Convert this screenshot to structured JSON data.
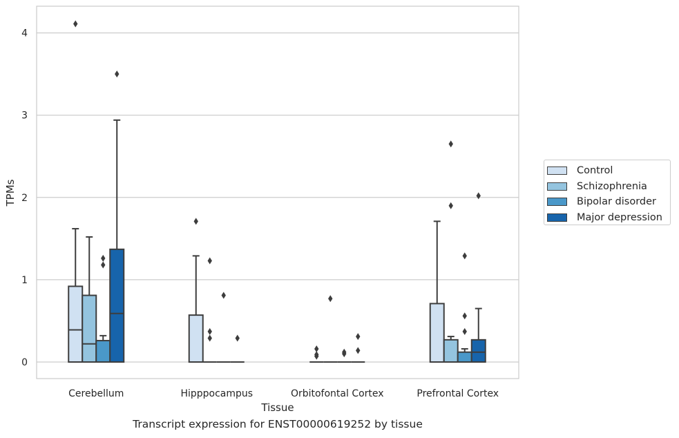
{
  "caption": "Transcript expression for ENST00000619252 by tissue",
  "chart_data": {
    "type": "box",
    "xlabel": "Tissue",
    "ylabel": "TPMs",
    "ylim": [
      -0.2,
      4.3
    ],
    "yticks": [
      0,
      1,
      2,
      3,
      4
    ],
    "grid": "horizontal",
    "legend_position": "right",
    "categories": [
      "Cerebellum",
      "Hipppocampus",
      "Orbitofontal Cortex",
      "Prefrontal Cortex"
    ],
    "series": [
      {
        "name": "Control",
        "color": "#d0e1f2",
        "boxes": [
          {
            "q1": 0,
            "median": 0.39,
            "q3": 0.92,
            "whisker_low": 0,
            "whisker_high": 1.62,
            "outliers": [
              4.11
            ]
          },
          {
            "q1": 0,
            "median": 0,
            "q3": 0.57,
            "whisker_low": 0,
            "whisker_high": 1.29,
            "outliers": [
              1.71
            ]
          },
          {
            "q1": 0,
            "median": 0,
            "q3": 0,
            "whisker_low": 0,
            "whisker_high": 0,
            "outliers": [
              0.07,
              0.09,
              0.16
            ]
          },
          {
            "q1": 0,
            "median": 0,
            "q3": 0.71,
            "whisker_low": 0,
            "whisker_high": 1.71,
            "outliers": []
          }
        ]
      },
      {
        "name": "Schizophrenia",
        "color": "#94c4df",
        "boxes": [
          {
            "q1": 0,
            "median": 0.22,
            "q3": 0.81,
            "whisker_low": 0,
            "whisker_high": 1.52,
            "outliers": []
          },
          {
            "q1": 0,
            "median": 0,
            "q3": 0,
            "whisker_low": 0,
            "whisker_high": 0,
            "outliers": [
              0.29,
              0.37,
              1.23
            ]
          },
          {
            "q1": 0,
            "median": 0,
            "q3": 0,
            "whisker_low": 0,
            "whisker_high": 0,
            "outliers": [
              0.77
            ]
          },
          {
            "q1": 0,
            "median": 0,
            "q3": 0.27,
            "whisker_low": 0,
            "whisker_high": 0.31,
            "outliers": [
              1.9,
              2.65
            ]
          }
        ]
      },
      {
        "name": "Bipolar disorder",
        "color": "#4a98c9",
        "boxes": [
          {
            "q1": 0,
            "median": 0,
            "q3": 0.26,
            "whisker_low": 0,
            "whisker_high": 0.32,
            "outliers": [
              1.18,
              1.26
            ]
          },
          {
            "q1": 0,
            "median": 0,
            "q3": 0,
            "whisker_low": 0,
            "whisker_high": 0,
            "outliers": [
              0.81
            ]
          },
          {
            "q1": 0,
            "median": 0,
            "q3": 0,
            "whisker_low": 0,
            "whisker_high": 0,
            "outliers": [
              0.1,
              0.12
            ]
          },
          {
            "q1": 0,
            "median": 0,
            "q3": 0.12,
            "whisker_low": 0,
            "whisker_high": 0.16,
            "outliers": [
              0.37,
              0.56,
              1.29
            ]
          }
        ]
      },
      {
        "name": "Major depression",
        "color": "#1764ab",
        "boxes": [
          {
            "q1": 0,
            "median": 0.59,
            "q3": 1.37,
            "whisker_low": 0,
            "whisker_high": 2.94,
            "outliers": [
              3.5
            ]
          },
          {
            "q1": 0,
            "median": 0,
            "q3": 0,
            "whisker_low": 0,
            "whisker_high": 0,
            "outliers": [
              0.29
            ]
          },
          {
            "q1": 0,
            "median": 0,
            "q3": 0,
            "whisker_low": 0,
            "whisker_high": 0,
            "outliers": [
              0.14,
              0.31
            ]
          },
          {
            "q1": 0,
            "median": 0.12,
            "q3": 0.27,
            "whisker_low": 0,
            "whisker_high": 0.65,
            "outliers": [
              2.02
            ]
          }
        ]
      }
    ]
  }
}
